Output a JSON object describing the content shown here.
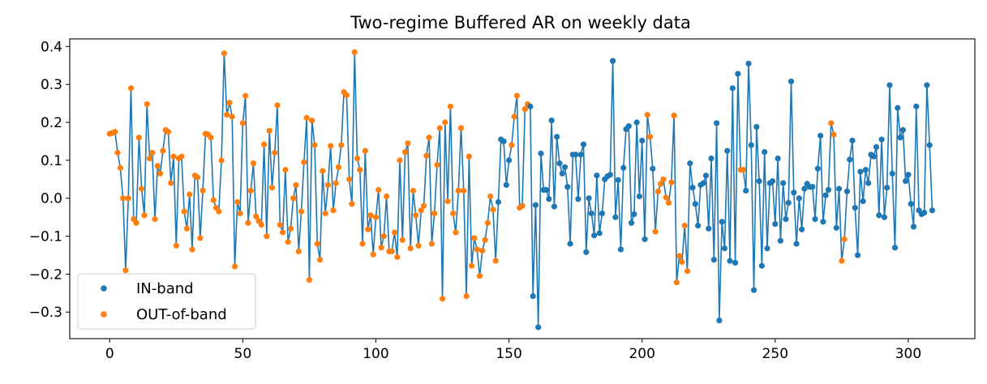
{
  "chart_data": {
    "type": "scatter",
    "title": "Two-regime Buffered AR on weekly data",
    "xlabel": "",
    "ylabel": "",
    "xlim": [
      -15,
      325
    ],
    "ylim": [
      -0.37,
      0.42
    ],
    "xticks": [
      0,
      50,
      100,
      150,
      200,
      250,
      300
    ],
    "xtick_labels": [
      "0",
      "50",
      "100",
      "150",
      "200",
      "250",
      "300"
    ],
    "yticks": [
      -0.3,
      -0.2,
      -0.1,
      0.0,
      0.1,
      0.2,
      0.3,
      0.4
    ],
    "ytick_labels": [
      "−0.3",
      "−0.2",
      "−0.1",
      "0.0",
      "0.1",
      "0.2",
      "0.3",
      "0.4"
    ],
    "grid": false,
    "legend_position": "lower-left",
    "line_color": "#1f77b4",
    "series": [
      {
        "name": "IN-band",
        "color": "#1f77b4"
      },
      {
        "name": "OUT-of-band",
        "color": "#ff7f0e"
      }
    ],
    "values": [
      0.17,
      0.172,
      0.175,
      0.12,
      0.08,
      0.0,
      -0.19,
      0.0,
      0.29,
      -0.055,
      -0.065,
      0.16,
      0.025,
      -0.045,
      0.248,
      0.105,
      0.12,
      -0.055,
      0.085,
      0.065,
      0.125,
      0.18,
      0.175,
      0.04,
      0.11,
      -0.125,
      0.105,
      0.11,
      -0.035,
      -0.08,
      0.01,
      -0.135,
      0.06,
      0.055,
      -0.105,
      0.02,
      0.17,
      0.168,
      0.16,
      -0.005,
      -0.025,
      -0.035,
      0.1,
      0.382,
      0.22,
      0.252,
      0.215,
      -0.18,
      -0.01,
      -0.04,
      0.198,
      0.27,
      -0.065,
      0.02,
      0.092,
      -0.048,
      -0.06,
      -0.07,
      0.142,
      -0.1,
      0.178,
      0.028,
      0.12,
      0.245,
      -0.07,
      -0.09,
      0.075,
      -0.115,
      -0.08,
      0.0,
      0.035,
      -0.14,
      -0.035,
      0.095,
      0.212,
      -0.215,
      0.205,
      0.14,
      -0.12,
      -0.162,
      0.072,
      -0.04,
      0.035,
      0.138,
      -0.032,
      0.04,
      0.082,
      0.14,
      0.28,
      0.272,
      0.05,
      -0.015,
      0.385,
      0.105,
      0.075,
      -0.12,
      0.125,
      -0.082,
      -0.045,
      -0.148,
      -0.05,
      0.022,
      -0.13,
      -0.1,
      0.005,
      -0.14,
      -0.14,
      -0.09,
      -0.155,
      0.1,
      -0.11,
      0.122,
      0.145,
      -0.132,
      0.02,
      -0.045,
      -0.125,
      -0.032,
      -0.02,
      0.112,
      0.16,
      -0.12,
      -0.04,
      0.088,
      0.185,
      -0.265,
      0.2,
      -0.008,
      0.242,
      -0.04,
      -0.09,
      0.02,
      0.185,
      0.02,
      -0.258,
      0.11,
      -0.178,
      -0.105,
      -0.135,
      -0.205,
      -0.138,
      -0.11,
      -0.065,
      0.005,
      -0.03,
      -0.165,
      -0.01,
      0.155,
      0.15,
      0.035,
      0.1,
      0.14,
      0.215,
      0.27,
      -0.025,
      -0.02,
      0.235,
      0.248,
      0.242,
      -0.258,
      -0.018,
      -0.34,
      0.118,
      0.022,
      0.022,
      -0.002,
      0.205,
      -0.022,
      0.162,
      0.092,
      0.065,
      0.082,
      0.03,
      -0.12,
      0.115,
      0.115,
      -0.002,
      0.115,
      0.142,
      -0.142,
      0.0,
      -0.04,
      -0.098,
      0.06,
      -0.092,
      -0.04,
      0.05,
      0.058,
      0.062,
      0.362,
      -0.05,
      0.048,
      -0.135,
      0.08,
      0.182,
      0.19,
      -0.065,
      -0.042,
      0.2,
      0.005,
      0.152,
      -0.108,
      0.22,
      0.162,
      0.078,
      -0.088,
      0.018,
      0.038,
      0.05,
      0.002,
      -0.012,
      0.042,
      0.218,
      -0.222,
      -0.152,
      -0.168,
      -0.072,
      -0.192,
      0.092,
      0.028,
      -0.015,
      -0.072,
      0.035,
      0.04,
      0.06,
      -0.08,
      0.105,
      -0.162,
      0.198,
      -0.322,
      -0.062,
      -0.132,
      0.125,
      -0.165,
      0.29,
      -0.17,
      0.328,
      0.075,
      0.075,
      0.02,
      0.355,
      0.14,
      -0.242,
      0.188,
      0.045,
      -0.178,
      0.122,
      -0.132,
      0.04,
      0.045,
      -0.068,
      0.105,
      -0.112,
      0.04,
      -0.055,
      -0.012,
      0.308,
      0.015,
      -0.12,
      0.0,
      -0.082,
      0.025,
      0.038,
      0.03,
      0.03,
      -0.055,
      0.078,
      0.165,
      -0.062,
      0.008,
      0.022,
      0.198,
      0.168,
      -0.078,
      0.025,
      -0.165,
      -0.108,
      0.018,
      0.102,
      0.152,
      -0.025,
      -0.15,
      0.07,
      -0.008,
      0.075,
      0.04,
      0.115,
      0.11,
      0.135,
      -0.045,
      0.155,
      -0.05,
      0.028,
      0.298,
      0.065,
      -0.13,
      0.238,
      0.16,
      0.18,
      0.045,
      0.062,
      -0.015,
      -0.075,
      0.242,
      -0.032,
      -0.042,
      -0.038,
      0.298,
      0.14,
      -0.032
    ],
    "out_of_band_ranges": [
      [
        0,
        145
      ],
      [
        151,
        157
      ],
      [
        202,
        203
      ],
      [
        205,
        217
      ],
      [
        237,
        238
      ],
      [
        271,
        272
      ],
      [
        275,
        276
      ]
    ]
  }
}
